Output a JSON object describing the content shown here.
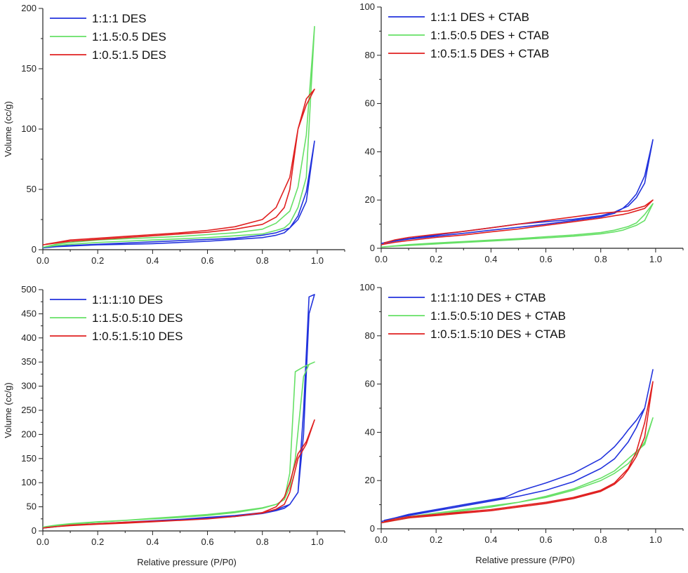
{
  "chart_data": [
    {
      "type": "line",
      "title": "",
      "xlabel": "",
      "ylabel": "Volume (cc/g)",
      "xlim": [
        0,
        1.1
      ],
      "ylim": [
        0,
        200
      ],
      "xticks": [
        "0.0",
        "0.2",
        "0.4",
        "0.6",
        "0.8",
        "1.0"
      ],
      "yticks": [
        "0",
        "50",
        "100",
        "150",
        "200"
      ],
      "grid": false,
      "legend": "top-left",
      "series": [
        {
          "name": "1:1:1 DES",
          "color": "#2233dd",
          "x": [
            0.0,
            0.05,
            0.1,
            0.2,
            0.3,
            0.4,
            0.5,
            0.6,
            0.7,
            0.8,
            0.85,
            0.88,
            0.9,
            0.93,
            0.96,
            0.99,
            0.96,
            0.93,
            0.9,
            0.85,
            0.8,
            0.7,
            0.6,
            0.5,
            0.4,
            0.3,
            0.2,
            0.1,
            0.05,
            0.01
          ],
          "y": [
            1.5,
            2.5,
            3,
            4,
            4.5,
            5,
            6,
            7,
            8.5,
            10,
            12,
            14,
            18,
            28,
            48,
            90,
            40,
            25,
            18,
            14,
            12,
            9.5,
            8.5,
            7.5,
            6.5,
            5.5,
            4.5,
            3.5,
            3,
            2
          ]
        },
        {
          "name": "1:1.5:0.5 DES",
          "color": "#66e066",
          "x": [
            0.0,
            0.05,
            0.1,
            0.2,
            0.3,
            0.4,
            0.5,
            0.6,
            0.7,
            0.8,
            0.85,
            0.88,
            0.9,
            0.93,
            0.96,
            0.99,
            0.96,
            0.93,
            0.9,
            0.85,
            0.8,
            0.7,
            0.6,
            0.5,
            0.4,
            0.3,
            0.2,
            0.1,
            0.05,
            0.01
          ],
          "y": [
            2,
            3.5,
            4.5,
            6,
            7,
            8,
            9,
            10,
            11.5,
            13,
            16,
            18,
            22,
            35,
            60,
            185,
            95,
            52,
            32,
            22,
            17,
            14,
            12.5,
            11,
            10,
            9,
            8,
            6,
            4.5,
            2.5
          ]
        },
        {
          "name": "1:0.5:1.5 DES",
          "color": "#e02020",
          "x": [
            0.0,
            0.05,
            0.1,
            0.2,
            0.3,
            0.4,
            0.5,
            0.6,
            0.7,
            0.8,
            0.85,
            0.88,
            0.9,
            0.93,
            0.96,
            0.99,
            0.96,
            0.93,
            0.9,
            0.85,
            0.8,
            0.7,
            0.6,
            0.5,
            0.4,
            0.3,
            0.2,
            0.1,
            0.05,
            0.01
          ],
          "y": [
            4,
            5.5,
            7,
            8.5,
            10,
            11.5,
            13,
            14.5,
            17,
            21,
            27,
            35,
            50,
            100,
            125,
            133,
            120,
            100,
            60,
            35,
            25,
            19,
            16,
            14,
            12.5,
            11,
            9.5,
            8,
            6,
            4.5
          ]
        }
      ]
    },
    {
      "type": "line",
      "title": "",
      "xlabel": "",
      "ylabel": "",
      "xlim": [
        0,
        1.1
      ],
      "ylim": [
        0,
        100
      ],
      "xticks": [
        "0.0",
        "0.2",
        "0.4",
        "0.6",
        "0.8",
        "1.0"
      ],
      "yticks": [
        "0",
        "20",
        "40",
        "60",
        "80",
        "100"
      ],
      "grid": false,
      "legend": "top-left",
      "series": [
        {
          "name": "1:1:1 DES + CTAB",
          "color": "#2233dd",
          "x": [
            0.0,
            0.05,
            0.1,
            0.2,
            0.3,
            0.4,
            0.5,
            0.6,
            0.7,
            0.8,
            0.85,
            0.88,
            0.9,
            0.93,
            0.96,
            0.99,
            0.96,
            0.93,
            0.9,
            0.85,
            0.8,
            0.7,
            0.6,
            0.5,
            0.4,
            0.3,
            0.2,
            0.1,
            0.05,
            0.01
          ],
          "y": [
            2,
            3,
            3.8,
            5,
            6.2,
            7.5,
            8.7,
            10,
            11.5,
            13,
            14.5,
            16.5,
            18.5,
            22.5,
            30,
            45,
            27,
            21,
            17.5,
            15,
            13.5,
            12,
            11,
            10,
            8.5,
            7,
            5.5,
            4,
            3.2,
            2.3
          ]
        },
        {
          "name": "1:1.5:0.5 DES + CTAB",
          "color": "#66e066",
          "x": [
            0.0,
            0.05,
            0.1,
            0.2,
            0.3,
            0.4,
            0.5,
            0.6,
            0.7,
            0.8,
            0.85,
            0.88,
            0.9,
            0.93,
            0.96,
            0.99,
            0.96,
            0.93,
            0.9,
            0.85,
            0.8,
            0.7,
            0.6,
            0.5,
            0.4,
            0.3,
            0.2,
            0.1,
            0.05,
            0.01
          ],
          "y": [
            0.5,
            0.9,
            1.2,
            1.8,
            2.4,
            3,
            3.6,
            4.3,
            5,
            6,
            6.8,
            7.5,
            8.3,
            9.5,
            11.5,
            18.5,
            14,
            10.5,
            9,
            7.5,
            6.5,
            5.5,
            4.8,
            4,
            3.4,
            2.8,
            2.2,
            1.5,
            1,
            0.6
          ]
        },
        {
          "name": "1:0.5:1.5 DES + CTAB",
          "color": "#e02020",
          "x": [
            0.0,
            0.05,
            0.1,
            0.2,
            0.3,
            0.4,
            0.5,
            0.6,
            0.7,
            0.8,
            0.85,
            0.88,
            0.9,
            0.93,
            0.96,
            0.99,
            0.96,
            0.93,
            0.9,
            0.85,
            0.8,
            0.7,
            0.6,
            0.5,
            0.4,
            0.3,
            0.2,
            0.1,
            0.05,
            0.01
          ],
          "y": [
            1.5,
            2.5,
            3.2,
            4.5,
            5.5,
            6.8,
            8,
            9.5,
            11,
            12.5,
            13.5,
            14,
            14.5,
            15.5,
            16.5,
            20,
            17.5,
            16.5,
            15.5,
            15,
            14.5,
            13,
            11.5,
            10,
            8.5,
            7,
            5.8,
            4.5,
            3.5,
            2.2
          ]
        }
      ]
    },
    {
      "type": "line",
      "title": "",
      "xlabel": "Relative pressure (P/P0)",
      "ylabel": "Volume (cc/g)",
      "xlim": [
        0,
        1.1
      ],
      "ylim": [
        0,
        500
      ],
      "xticks": [
        "0.0",
        "0.2",
        "0.4",
        "0.6",
        "0.8",
        "1.0"
      ],
      "yticks": [
        "0",
        "50",
        "100",
        "150",
        "200",
        "250",
        "300",
        "350",
        "400",
        "450",
        "500"
      ],
      "grid": false,
      "legend": "top-left",
      "series": [
        {
          "name": "1:1:1:10 DES",
          "color": "#2233dd",
          "x": [
            0.0,
            0.05,
            0.1,
            0.2,
            0.3,
            0.4,
            0.5,
            0.6,
            0.7,
            0.8,
            0.85,
            0.88,
            0.9,
            0.93,
            0.95,
            0.97,
            0.99,
            0.97,
            0.95,
            0.93,
            0.9,
            0.85,
            0.8,
            0.7,
            0.6,
            0.5,
            0.4,
            0.3,
            0.2,
            0.1,
            0.05,
            0.01
          ],
          "y": [
            6,
            9,
            12,
            15,
            18,
            20,
            23,
            26,
            30,
            36,
            42,
            47,
            55,
            80,
            250,
            485,
            490,
            450,
            200,
            80,
            55,
            44,
            38,
            32,
            28,
            24,
            21,
            18,
            15,
            12,
            10,
            7
          ]
        },
        {
          "name": "1:1.5:0.5:10 DES",
          "color": "#66e066",
          "x": [
            0.0,
            0.05,
            0.1,
            0.2,
            0.3,
            0.4,
            0.5,
            0.6,
            0.7,
            0.8,
            0.85,
            0.88,
            0.9,
            0.92,
            0.95,
            0.97,
            0.99,
            0.97,
            0.95,
            0.92,
            0.9,
            0.88,
            0.85,
            0.8,
            0.7,
            0.6,
            0.5,
            0.4,
            0.3,
            0.2,
            0.1,
            0.05,
            0.01
          ],
          "y": [
            8,
            12,
            15,
            19,
            22,
            25,
            28,
            32,
            38,
            47,
            55,
            65,
            120,
            330,
            340,
            345,
            350,
            345,
            320,
            150,
            90,
            65,
            55,
            48,
            40,
            34,
            30,
            26,
            22,
            18,
            14,
            11,
            8
          ]
        },
        {
          "name": "1:0.5:1.5:10 DES",
          "color": "#e02020",
          "x": [
            0.0,
            0.05,
            0.1,
            0.2,
            0.3,
            0.4,
            0.5,
            0.6,
            0.7,
            0.8,
            0.85,
            0.88,
            0.9,
            0.93,
            0.96,
            0.99,
            0.96,
            0.93,
            0.9,
            0.88,
            0.85,
            0.8,
            0.7,
            0.6,
            0.5,
            0.4,
            0.3,
            0.2,
            0.1,
            0.05,
            0.01
          ],
          "y": [
            6,
            9,
            12,
            15,
            18,
            20,
            22,
            25,
            30,
            37,
            45,
            55,
            80,
            150,
            180,
            230,
            185,
            160,
            100,
            70,
            50,
            38,
            30,
            25,
            22,
            19,
            16,
            14,
            11,
            9,
            7
          ]
        }
      ]
    },
    {
      "type": "line",
      "title": "",
      "xlabel": "Relative pressure (P/P0)",
      "ylabel": "",
      "xlim": [
        0,
        1.1
      ],
      "ylim": [
        0,
        100
      ],
      "xticks": [
        "0.0",
        "0.2",
        "0.4",
        "0.6",
        "0.8",
        "1.0"
      ],
      "yticks": [
        "0",
        "20",
        "40",
        "60",
        "80",
        "100"
      ],
      "grid": false,
      "legend": "top-left",
      "series": [
        {
          "name": "1:1:1:10 DES + CTAB",
          "color": "#2233dd",
          "x": [
            0.0,
            0.05,
            0.1,
            0.2,
            0.3,
            0.4,
            0.45,
            0.5,
            0.6,
            0.7,
            0.8,
            0.85,
            0.88,
            0.9,
            0.93,
            0.96,
            0.99,
            0.96,
            0.93,
            0.9,
            0.85,
            0.8,
            0.7,
            0.6,
            0.5,
            0.4,
            0.3,
            0.2,
            0.1,
            0.05,
            0.01
          ],
          "y": [
            3,
            4.5,
            6,
            8,
            10,
            12,
            13,
            15.5,
            19,
            23,
            29,
            34,
            38,
            41,
            45,
            50,
            66,
            50,
            42,
            36,
            29,
            25,
            19.5,
            16,
            13.5,
            11.5,
            9.5,
            7.5,
            5.5,
            4.5,
            3.5
          ]
        },
        {
          "name": "1:1.5:0.5:10 DES + CTAB",
          "color": "#66e066",
          "x": [
            0.0,
            0.05,
            0.1,
            0.2,
            0.3,
            0.4,
            0.5,
            0.6,
            0.7,
            0.8,
            0.85,
            0.88,
            0.9,
            0.93,
            0.96,
            0.99,
            0.96,
            0.93,
            0.9,
            0.85,
            0.8,
            0.7,
            0.6,
            0.5,
            0.4,
            0.3,
            0.2,
            0.1,
            0.05,
            0.01
          ],
          "y": [
            2.5,
            3.5,
            4.5,
            6,
            7.5,
            9,
            11,
            13.5,
            16.5,
            21,
            24,
            27,
            29,
            32,
            35,
            46,
            36,
            31,
            27,
            23,
            20,
            16,
            13,
            11,
            9.5,
            8,
            6.5,
            5,
            4,
            3
          ]
        },
        {
          "name": "1:0.5:1.5:10 DES + CTAB",
          "color": "#e02020",
          "x": [
            0.0,
            0.05,
            0.1,
            0.2,
            0.3,
            0.4,
            0.5,
            0.6,
            0.7,
            0.8,
            0.85,
            0.88,
            0.9,
            0.93,
            0.96,
            0.99,
            0.96,
            0.93,
            0.9,
            0.85,
            0.8,
            0.7,
            0.6,
            0.5,
            0.4,
            0.3,
            0.2,
            0.1,
            0.05,
            0.01
          ],
          "y": [
            2.5,
            3.5,
            4.5,
            5.5,
            6.5,
            7.5,
            9,
            10.5,
            12.5,
            15.5,
            18.5,
            21.5,
            24.5,
            30,
            38,
            61,
            44,
            32,
            25,
            19,
            16,
            13,
            11,
            9.5,
            8,
            7,
            6,
            5,
            4,
            3
          ]
        }
      ]
    }
  ]
}
